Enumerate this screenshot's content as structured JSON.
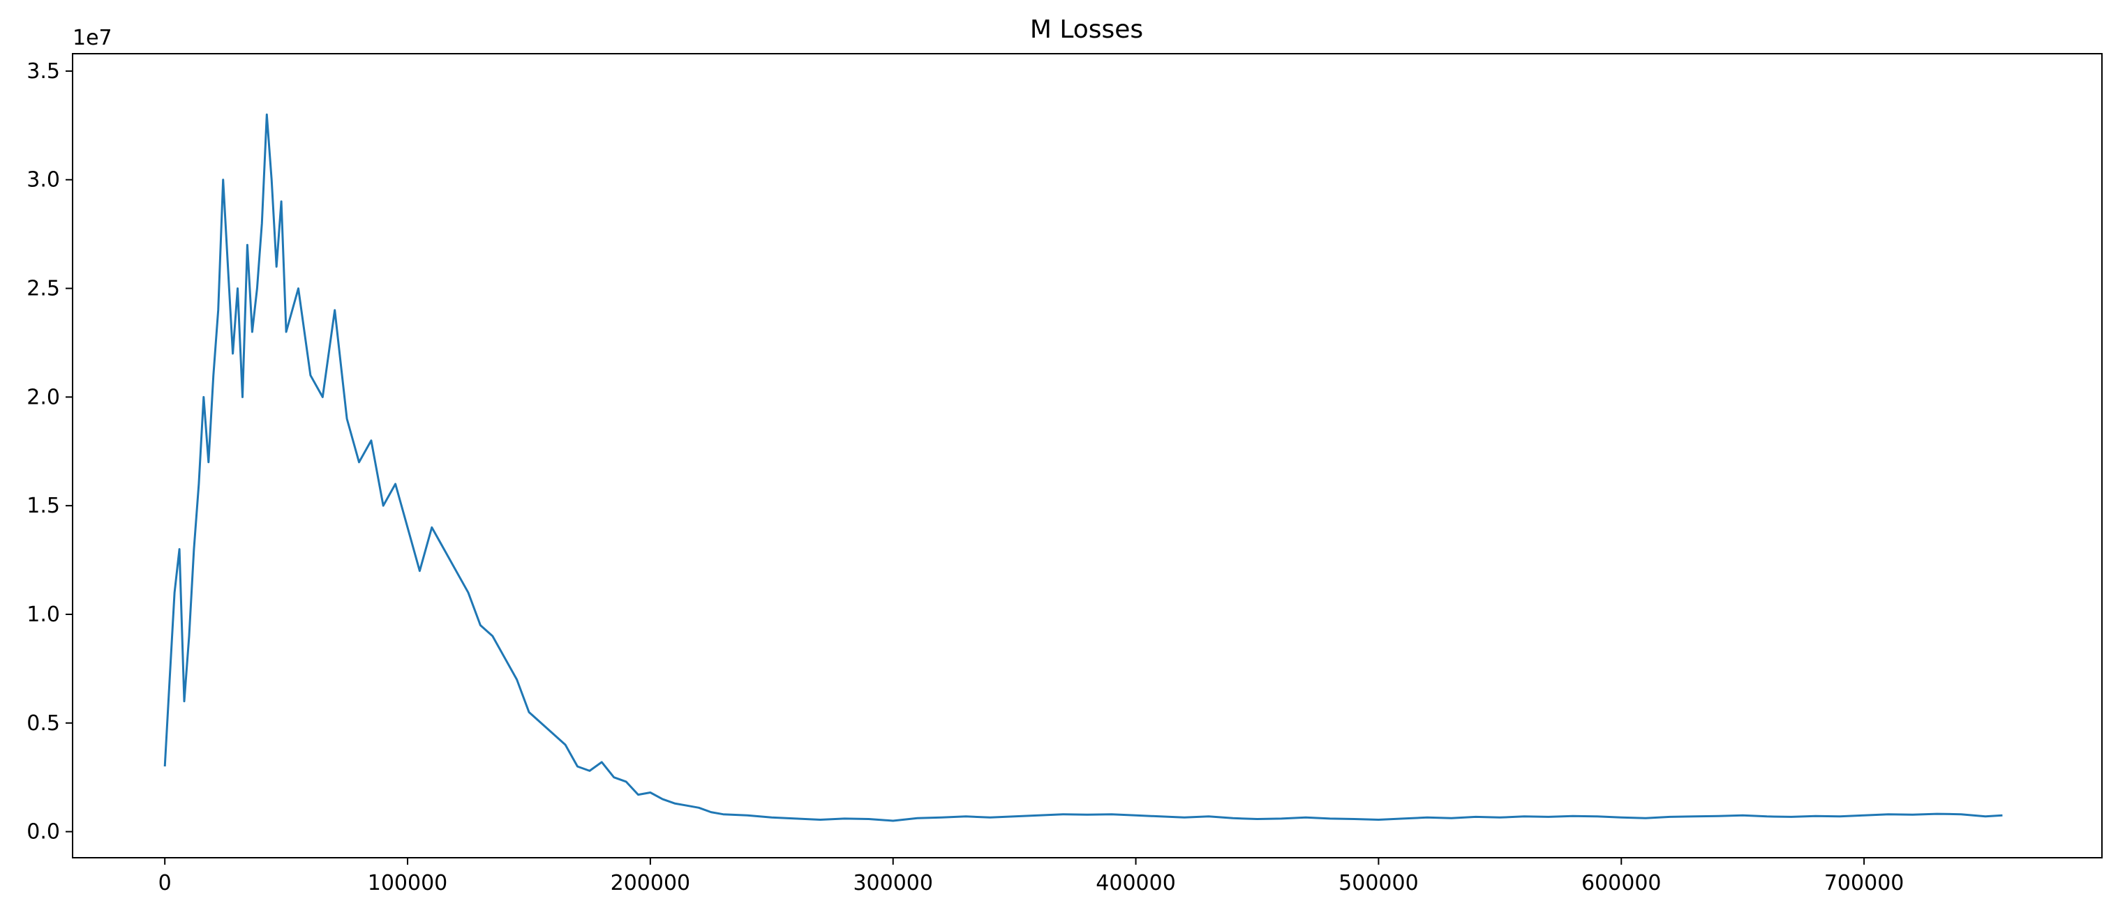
{
  "chart_data": {
    "type": "line",
    "title": "M Losses",
    "xlabel": "",
    "ylabel": "",
    "y_offset_label": "1e7",
    "xlim": [
      -38000,
      798000
    ],
    "ylim": [
      -1200000,
      35800000
    ],
    "x_ticks": [
      0,
      100000,
      200000,
      300000,
      400000,
      500000,
      600000,
      700000
    ],
    "x_tick_labels": [
      "0",
      "100000",
      "200000",
      "300000",
      "400000",
      "500000",
      "600000",
      "700000"
    ],
    "y_ticks": [
      0,
      5000000,
      10000000,
      15000000,
      20000000,
      25000000,
      30000000,
      35000000
    ],
    "y_tick_labels": [
      "0.0",
      "0.5",
      "1.0",
      "1.5",
      "2.0",
      "2.5",
      "3.0",
      "3.5"
    ],
    "grid": false,
    "legend": "none",
    "series": [
      {
        "color": "#1f77b4",
        "x": [
          0,
          2000,
          4000,
          6000,
          8000,
          10000,
          12000,
          14000,
          16000,
          18000,
          20000,
          22000,
          24000,
          26000,
          28000,
          30000,
          32000,
          34000,
          36000,
          38000,
          40000,
          42000,
          44000,
          46000,
          48000,
          50000,
          55000,
          60000,
          65000,
          70000,
          75000,
          80000,
          85000,
          90000,
          95000,
          100000,
          105000,
          110000,
          115000,
          120000,
          125000,
          130000,
          135000,
          140000,
          145000,
          150000,
          155000,
          160000,
          165000,
          170000,
          175000,
          180000,
          185000,
          190000,
          195000,
          200000,
          205000,
          210000,
          215000,
          220000,
          225000,
          230000,
          240000,
          250000,
          260000,
          270000,
          280000,
          290000,
          300000,
          310000,
          320000,
          330000,
          340000,
          350000,
          360000,
          370000,
          380000,
          390000,
          400000,
          410000,
          420000,
          430000,
          440000,
          450000,
          460000,
          470000,
          480000,
          490000,
          500000,
          510000,
          520000,
          530000,
          540000,
          550000,
          560000,
          570000,
          580000,
          590000,
          600000,
          610000,
          620000,
          630000,
          640000,
          650000,
          660000,
          670000,
          680000,
          690000,
          700000,
          710000,
          720000,
          730000,
          740000,
          750000,
          757000
        ],
        "y": [
          3000000,
          7000000,
          11000000,
          13000000,
          6000000,
          9000000,
          13000000,
          16000000,
          20000000,
          17000000,
          21000000,
          24000000,
          30000000,
          26000000,
          22000000,
          25000000,
          20000000,
          27000000,
          23000000,
          25000000,
          28000000,
          33000000,
          30000000,
          26000000,
          29000000,
          23000000,
          25000000,
          21000000,
          20000000,
          24000000,
          19000000,
          17000000,
          18000000,
          15000000,
          16000000,
          14000000,
          12000000,
          14000000,
          13000000,
          12000000,
          11000000,
          9500000,
          9000000,
          8000000,
          7000000,
          5500000,
          5000000,
          4500000,
          4000000,
          3000000,
          2800000,
          3200000,
          2500000,
          2300000,
          1700000,
          1800000,
          1500000,
          1300000,
          1200000,
          1100000,
          900000,
          800000,
          750000,
          650000,
          600000,
          550000,
          600000,
          580000,
          500000,
          620000,
          650000,
          700000,
          650000,
          700000,
          750000,
          800000,
          780000,
          800000,
          750000,
          700000,
          650000,
          700000,
          620000,
          580000,
          600000,
          650000,
          600000,
          580000,
          550000,
          600000,
          650000,
          620000,
          680000,
          650000,
          700000,
          680000,
          720000,
          700000,
          650000,
          620000,
          680000,
          700000,
          720000,
          750000,
          700000,
          680000,
          720000,
          700000,
          750000,
          800000,
          780000,
          820000,
          800000,
          700000,
          750000
        ]
      }
    ]
  }
}
